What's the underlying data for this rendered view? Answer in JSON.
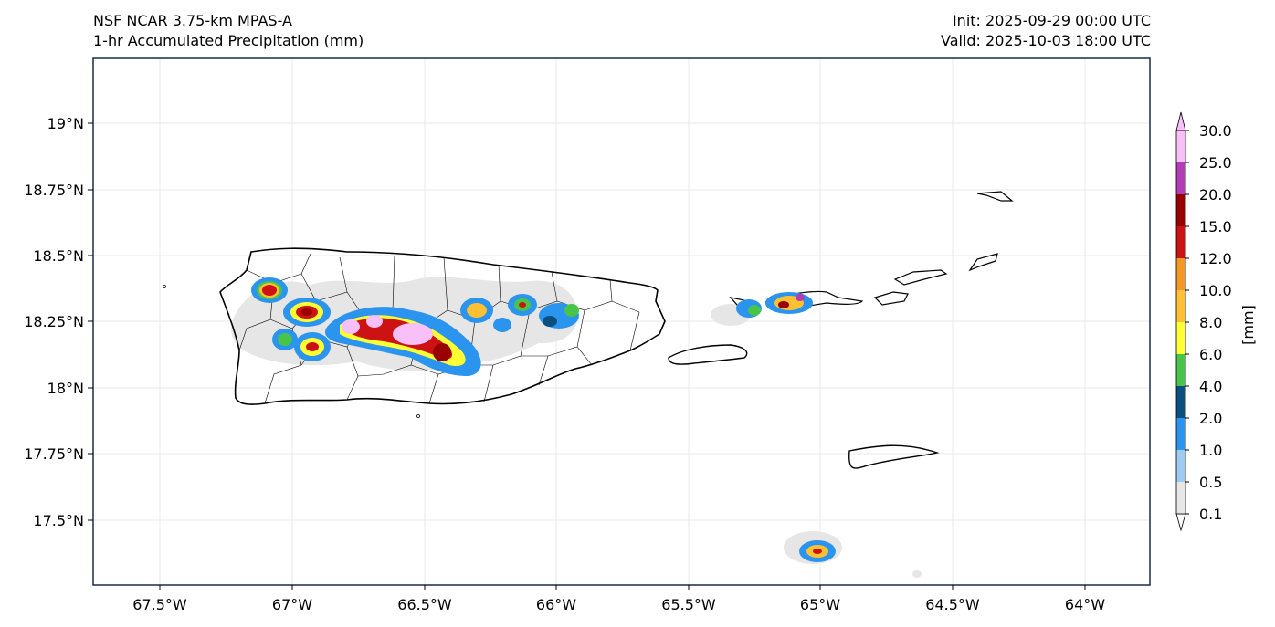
{
  "header": {
    "model": "NSF NCAR 3.75-km MPAS-A",
    "field": "1-hr Accumulated Precipitation (mm)",
    "init": "Init: 2025-09-29 00:00 UTC",
    "valid": "Valid: 2025-10-03 18:00 UTC"
  },
  "map": {
    "region": "Puerto Rico and U.S./British Virgin Islands",
    "lon_range": [
      -67.75,
      -63.75
    ],
    "lat_range": [
      17.25,
      19.25
    ],
    "x_ticks": [
      "67.5°W",
      "67°W",
      "66.5°W",
      "66°W",
      "65.5°W",
      "65°W",
      "64.5°W",
      "64°W"
    ],
    "y_ticks": [
      "19°N",
      "18.75°N",
      "18.5°N",
      "18.25°N",
      "18°N",
      "17.75°N",
      "17.5°N"
    ],
    "grid": true,
    "background_color": "#ffffff",
    "coastline_color": "#000000"
  },
  "colorbar": {
    "label": "[mm]",
    "levels": [
      "0.1",
      "0.5",
      "1.0",
      "2.0",
      "4.0",
      "6.0",
      "8.0",
      "10.0",
      "12.0",
      "15.0",
      "20.0",
      "25.0",
      "30.0"
    ],
    "colors": [
      "#e6e6e6",
      "#9ecbf0",
      "#2b94ee",
      "#0a4f80",
      "#48c548",
      "#ffff33",
      "#ffc033",
      "#f39826",
      "#cc1212",
      "#990000",
      "#b23db6",
      "#f9bff9"
    ]
  },
  "precip_cells": [
    {
      "location": "northwest Puerto Rico",
      "peak_level": "15.0"
    },
    {
      "location": "west-central Puerto Rico",
      "peak_level": "20.0"
    },
    {
      "location": "central Puerto Rico",
      "peak_level": "30.0"
    },
    {
      "location": "south-central Puerto Rico",
      "peak_level": "15.0"
    },
    {
      "location": "east-central Puerto Rico",
      "peak_level": "10.0"
    },
    {
      "location": "Culebra / St. Thomas area",
      "peak_level": "20.0"
    },
    {
      "location": "south of St. Croix",
      "peak_level": "15.0"
    }
  ]
}
